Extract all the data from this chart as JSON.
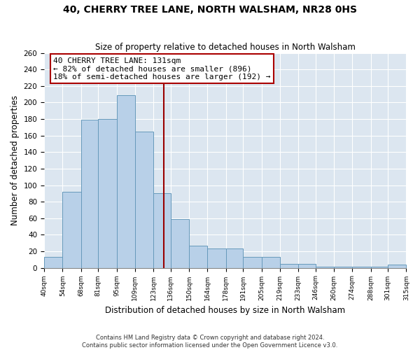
{
  "title": "40, CHERRY TREE LANE, NORTH WALSHAM, NR28 0HS",
  "subtitle": "Size of property relative to detached houses in North Walsham",
  "xlabel": "Distribution of detached houses by size in North Walsham",
  "ylabel": "Number of detached properties",
  "bar_color": "#b8d0e8",
  "bar_edge_color": "#6699bb",
  "background_color": "#dce6f0",
  "vline_x": 131,
  "vline_color": "#990000",
  "annotation_title": "40 CHERRY TREE LANE: 131sqm",
  "annotation_line1": "← 82% of detached houses are smaller (896)",
  "annotation_line2": "18% of semi-detached houses are larger (192) →",
  "bin_edges": [
    40,
    54,
    68,
    81,
    95,
    109,
    123,
    136,
    150,
    164,
    178,
    191,
    205,
    219,
    233,
    246,
    260,
    274,
    288,
    301,
    315
  ],
  "bin_counts": [
    13,
    92,
    179,
    180,
    209,
    165,
    90,
    59,
    27,
    23,
    23,
    13,
    13,
    5,
    5,
    1,
    1,
    1,
    1,
    4
  ],
  "ylim": [
    0,
    260
  ],
  "yticks": [
    0,
    20,
    40,
    60,
    80,
    100,
    120,
    140,
    160,
    180,
    200,
    220,
    240,
    260
  ],
  "footer_line1": "Contains HM Land Registry data © Crown copyright and database right 2024.",
  "footer_line2": "Contains public sector information licensed under the Open Government Licence v3.0."
}
